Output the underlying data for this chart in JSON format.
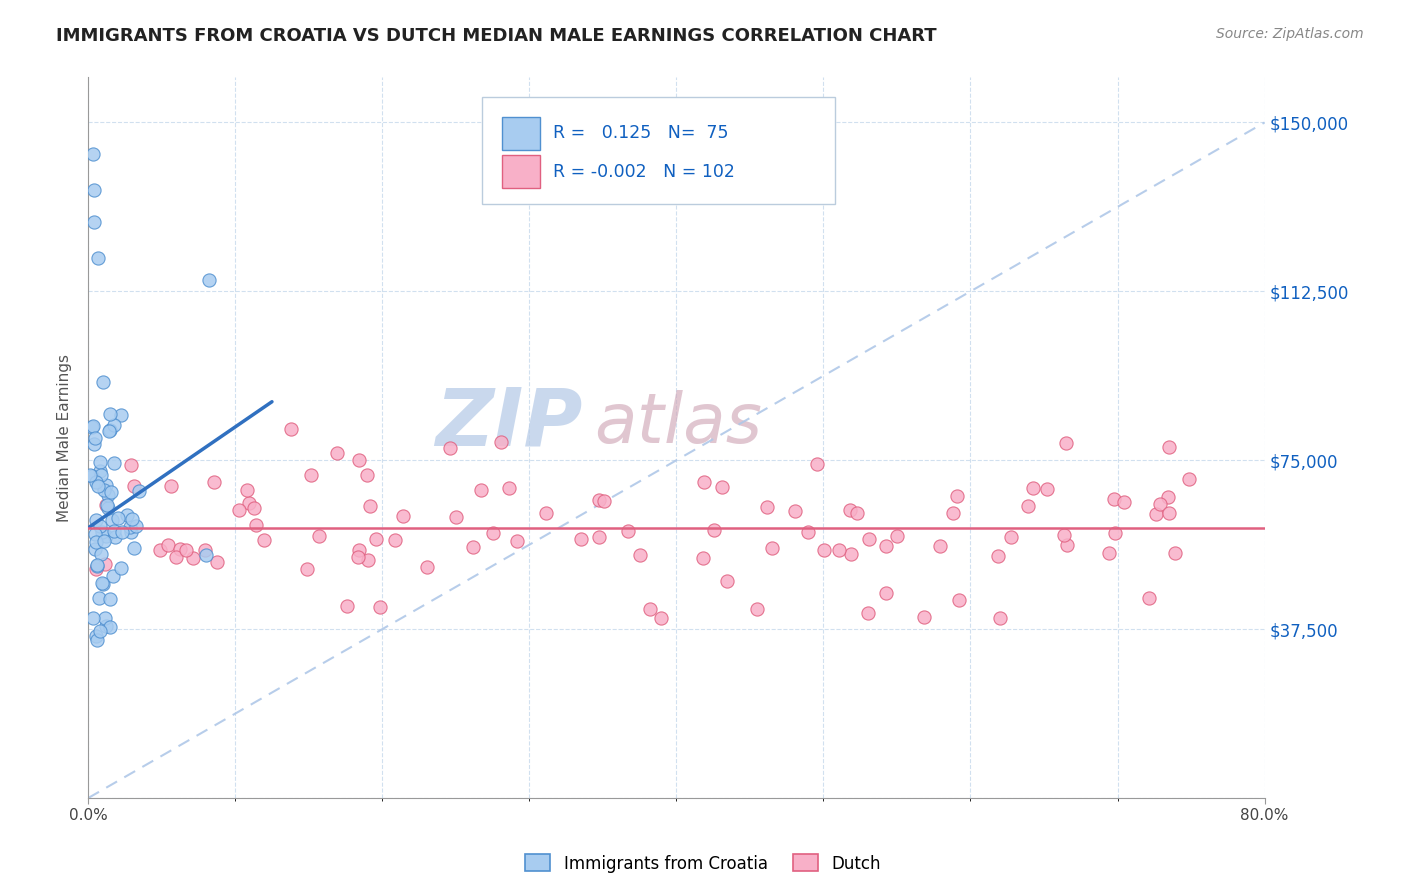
{
  "title": "IMMIGRANTS FROM CROATIA VS DUTCH MEDIAN MALE EARNINGS CORRELATION CHART",
  "source_text": "Source: ZipAtlas.com",
  "ylabel": "Median Male Earnings",
  "xlim": [
    0.0,
    0.8
  ],
  "ylim": [
    0,
    160000
  ],
  "yticks": [
    0,
    37500,
    75000,
    112500,
    150000
  ],
  "xtick_left": "0.0%",
  "xtick_right": "80.0%",
  "r_croatia": 0.125,
  "n_croatia": 75,
  "r_dutch": -0.002,
  "n_dutch": 102,
  "color_croatia_fill": "#a8ccf0",
  "color_croatia_edge": "#5090d0",
  "color_dutch_fill": "#f8b0c8",
  "color_dutch_edge": "#e06080",
  "line_color_croatia": "#3070c0",
  "line_color_dutch": "#e06080",
  "diag_color": "#b0c8e8",
  "watermark": "ZIPAtlas",
  "watermark_color_zip": "#b8cce8",
  "watermark_color_atlas": "#d0a8b8",
  "legend_r_color": "#1060c0",
  "legend_n_color": "#1060c0",
  "ytick_labels": [
    "",
    "$37,500",
    "$75,000",
    "$112,500",
    "$150,000"
  ],
  "ytick_color": "#1060c0",
  "background_color": "#ffffff",
  "grid_color": "#ccddee",
  "title_fontsize": 13,
  "source_fontsize": 10
}
